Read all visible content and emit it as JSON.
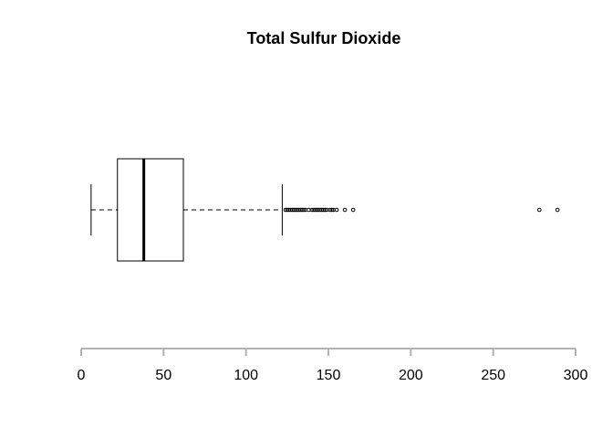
{
  "chart_data": {
    "type": "boxplot",
    "orientation": "horizontal",
    "title": "Total Sulfur Dioxide",
    "xlabel": "",
    "ylabel": "",
    "xlim": [
      0,
      300
    ],
    "x_ticks": [
      0,
      50,
      100,
      150,
      200,
      250,
      300
    ],
    "grid": false,
    "box": {
      "whisker_low": 6,
      "q1": 22,
      "median": 38,
      "q3": 62,
      "whisker_high": 122
    },
    "outliers": [
      124,
      125,
      126,
      127,
      128,
      129,
      130,
      131,
      132,
      133,
      134,
      135,
      136,
      138,
      140,
      141,
      142,
      143,
      144,
      145,
      146,
      147,
      148,
      149,
      151,
      152,
      153,
      155,
      160,
      165,
      278,
      289
    ]
  }
}
